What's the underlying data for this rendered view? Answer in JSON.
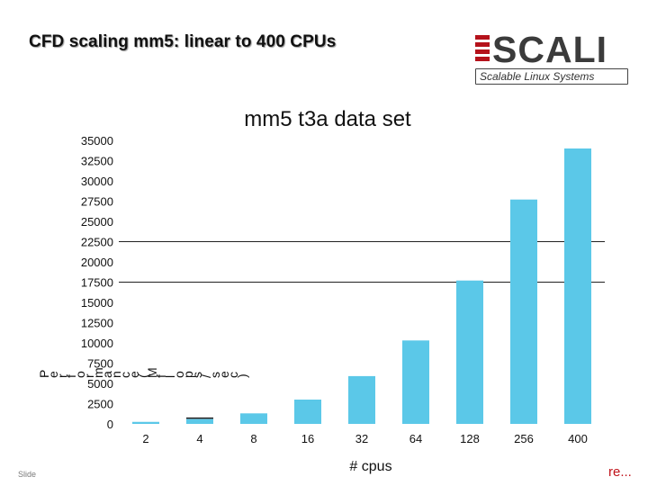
{
  "slide": {
    "title": "CFD  scaling mm5: linear to 400 CPUs",
    "footer_left": "Slide",
    "footer_right": "re..."
  },
  "logo": {
    "word": "SCALI",
    "tagline": "Scalable Linux Systems",
    "colors": {
      "bars": "#b5121b",
      "text": "#3b3b3b"
    }
  },
  "chart_data": {
    "type": "bar",
    "title": "mm5 t3a data set",
    "xlabel": "# cpus",
    "ylabel": "Performance (Mflops/sec)",
    "categories": [
      "2",
      "4",
      "8",
      "16",
      "32",
      "64",
      "128",
      "256",
      "400"
    ],
    "values": [
      250,
      600,
      1300,
      3000,
      5900,
      10300,
      17700,
      27700,
      34000
    ],
    "ylim": [
      0,
      35000
    ],
    "yticks": [
      0,
      2500,
      5000,
      7500,
      10000,
      12500,
      15000,
      17500,
      20000,
      22500,
      25000,
      27500,
      30000,
      32500,
      35000
    ],
    "grid_lines_at": [
      22500,
      17500
    ],
    "grid": false,
    "bar_color": "#5bc8e8"
  }
}
